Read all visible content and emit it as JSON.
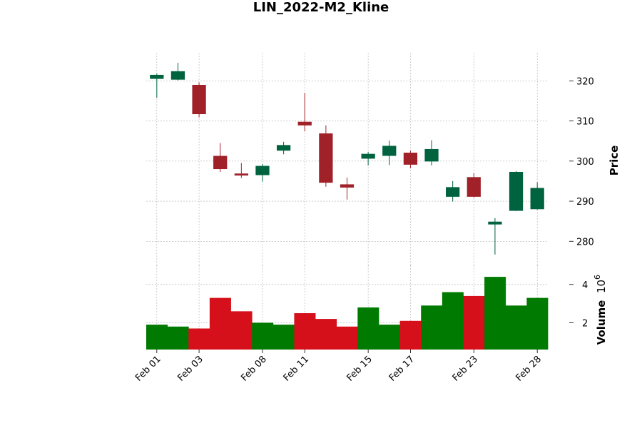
{
  "chart_data": {
    "type": "candlestick",
    "title": "LIN_2022-M2_Kline",
    "price_ylabel": "Price",
    "volume_ylabel": "Volume",
    "volume_exponent_label": "10",
    "volume_exponent_power": "6",
    "price_ylim": [
      274,
      327
    ],
    "price_yticks": [
      280,
      290,
      300,
      310,
      320
    ],
    "volume_ylim": [
      0.6,
      5.0
    ],
    "volume_yticks": [
      2,
      4
    ],
    "xtick_labels": [
      "Feb 01",
      "Feb 03",
      "Feb 08",
      "Feb 11",
      "Feb 15",
      "Feb 17",
      "Feb 23",
      "Feb 28"
    ],
    "xtick_index": [
      0,
      2,
      5,
      7,
      10,
      12,
      15,
      18
    ],
    "grid": true,
    "up_color": "#006340",
    "down_color": "#a02128",
    "volume_up_color": "#007a00",
    "volume_down_color": "#d5101a",
    "candles": [
      {
        "open": 320.5,
        "high": 321.8,
        "low": 315.8,
        "close": 321.5,
        "volume": 1.9
      },
      {
        "open": 320.3,
        "high": 324.5,
        "low": 320.1,
        "close": 322.4,
        "volume": 1.8
      },
      {
        "open": 319.0,
        "high": 319.6,
        "low": 310.9,
        "close": 311.7,
        "volume": 1.7
      },
      {
        "open": 301.3,
        "high": 304.5,
        "low": 297.3,
        "close": 298.0,
        "volume": 3.3
      },
      {
        "open": 296.9,
        "high": 299.5,
        "low": 295.8,
        "close": 296.4,
        "volume": 2.6
      },
      {
        "open": 296.5,
        "high": 299.3,
        "low": 294.9,
        "close": 298.8,
        "volume": 2.0
      },
      {
        "open": 302.6,
        "high": 304.8,
        "low": 301.7,
        "close": 304.0,
        "volume": 1.9
      },
      {
        "open": 309.8,
        "high": 317.0,
        "low": 307.4,
        "close": 308.9,
        "volume": 2.5
      },
      {
        "open": 306.9,
        "high": 308.9,
        "low": 293.6,
        "close": 294.6,
        "volume": 2.2
      },
      {
        "open": 294.2,
        "high": 295.9,
        "low": 290.4,
        "close": 293.4,
        "volume": 1.8
      },
      {
        "open": 300.6,
        "high": 302.3,
        "low": 298.9,
        "close": 301.8,
        "volume": 2.8
      },
      {
        "open": 301.3,
        "high": 305.1,
        "low": 299.0,
        "close": 303.8,
        "volume": 1.9
      },
      {
        "open": 302.1,
        "high": 302.6,
        "low": 298.2,
        "close": 299.1,
        "volume": 2.1
      },
      {
        "open": 299.9,
        "high": 305.2,
        "low": 298.9,
        "close": 303.0,
        "volume": 2.9
      },
      {
        "open": 291.1,
        "high": 295.0,
        "low": 289.9,
        "close": 293.5,
        "volume": 3.6
      },
      {
        "open": 296.0,
        "high": 297.0,
        "low": 290.9,
        "close": 291.1,
        "volume": 3.4
      },
      {
        "open": 284.2,
        "high": 285.8,
        "low": 276.7,
        "close": 284.9,
        "volume": 4.4
      },
      {
        "open": 287.6,
        "high": 297.5,
        "low": 287.5,
        "close": 297.3,
        "volume": 2.9
      },
      {
        "open": 288.0,
        "high": 294.7,
        "low": 287.9,
        "close": 293.3,
        "volume": 3.3
      }
    ]
  }
}
